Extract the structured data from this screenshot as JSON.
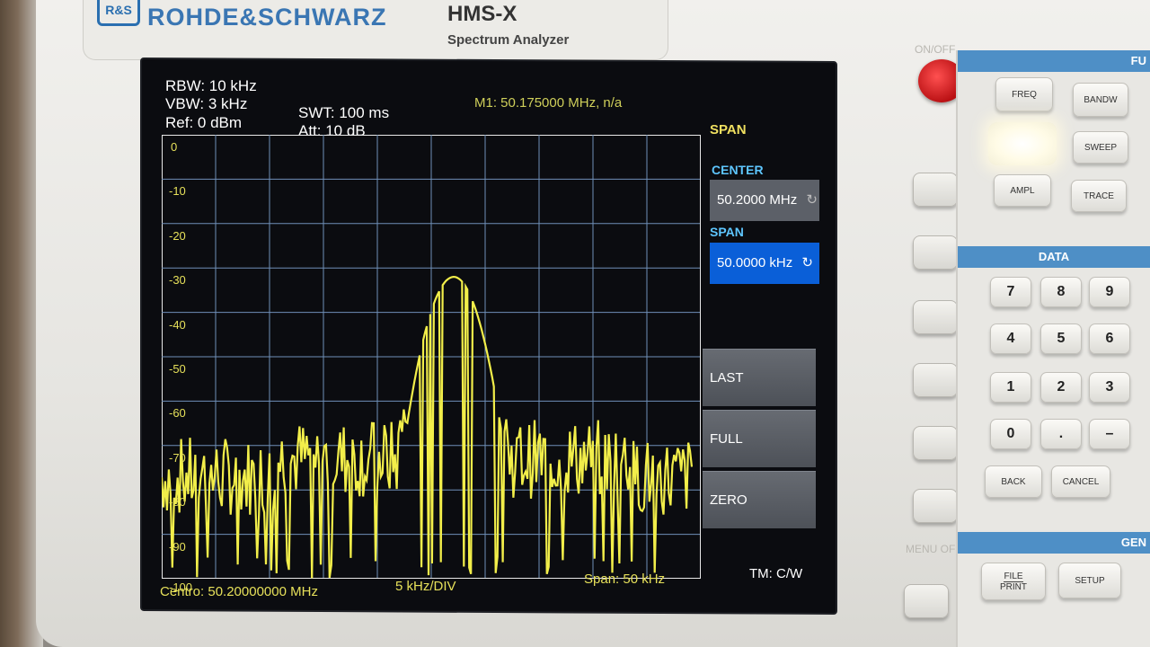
{
  "device": {
    "brand": "ROHDE&SCHWARZ",
    "model": "HMS-X",
    "model_subtitle": "Spectrum Analyzer",
    "power_label": "ON/OFF",
    "menu_off_label": "MENU OFF"
  },
  "screen": {
    "rbw": "RBW: 10 kHz",
    "vbw": "VBW: 3 kHz",
    "ref": "Ref: 0 dBm",
    "swt": "SWT: 100 ms",
    "att": "Att: 10 dB",
    "marker": "M1: 50.175000 MHz, n/a",
    "center_readout": "Centro: 50.20000000 MHz",
    "div_readout": "5 kHz/DIV",
    "span_readout": "Span: 50 kHz",
    "trace_mode": "TM: C/W",
    "y_labels": [
      "0",
      "-10",
      "-20",
      "-30",
      "-40",
      "-50",
      "-60",
      "-70",
      "-80",
      "-90",
      "-100"
    ]
  },
  "softkeys": {
    "menu_title": "SPAN",
    "center_label": "CENTER",
    "center_value": "50.2000 MHz",
    "span_label": "SPAN",
    "span_value": "50.0000 kHz",
    "last": "LAST",
    "full": "FULL",
    "zero": "ZERO"
  },
  "keypad": {
    "func_band": "FU",
    "freq": "FREQ",
    "bandw": "BANDW",
    "sweep": "SWEEP",
    "ampl": "AMPL",
    "trace": "TRACE",
    "data_band": "DATA",
    "digits": [
      "7",
      "8",
      "9",
      "4",
      "5",
      "6",
      "1",
      "2",
      "3",
      "0",
      ".",
      "–"
    ],
    "back": "BACK",
    "cancel": "CANCEL",
    "gen_band": "GEN",
    "file_print_top": "FILE",
    "file_print_bottom": "PRINT",
    "setup": "SETUP"
  },
  "colors": {
    "trace": "#f2ee4a",
    "grid": "#6f8fb8",
    "active_softkey": "#0a5fd8",
    "band": "#4e8fc6"
  }
}
